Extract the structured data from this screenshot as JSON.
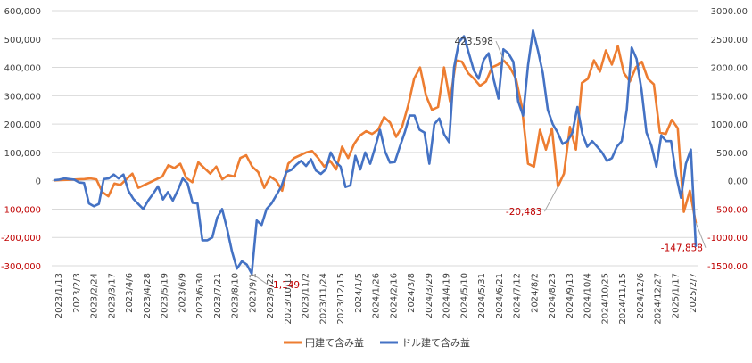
{
  "colors": {
    "yen_series": "#ed7d31",
    "usd_series": "#4472c4",
    "grid": "#d9d9d9",
    "negative_label": "#c00000",
    "text": "#404040"
  },
  "chart_data": {
    "type": "line",
    "grid": true,
    "legend_position": "bottom",
    "y_left": {
      "min": -300000,
      "max": 600000,
      "ticks": [
        -300000,
        -200000,
        -100000,
        0,
        100000,
        200000,
        300000,
        400000,
        500000,
        600000
      ],
      "tick_labels": [
        "-300,000",
        "-200,000",
        "-100,000",
        "0",
        "100,000",
        "200,000",
        "300,000",
        "400,000",
        "500,000",
        "600,000"
      ]
    },
    "y_right": {
      "min": -1500,
      "max": 3000,
      "ticks": [
        -1500,
        -1000,
        -500,
        0,
        500,
        1000,
        1500,
        2000,
        2500,
        3000
      ],
      "tick_labels": [
        "-1500.00",
        "-1000.00",
        "-500.00",
        "0.00",
        "500.00",
        "1000.00",
        "1500.00",
        "2000.00",
        "2500.00",
        "3000.00"
      ]
    },
    "x_tick_labels": [
      "2023/1/13",
      "2023/2/3",
      "2023/2/24",
      "2023/3/17",
      "2023/4/6",
      "2023/4/28",
      "2023/5/19",
      "2023/6/9",
      "2023/6/30",
      "2023/7/21",
      "2023/8/10",
      "2023/9/1",
      "2023/9/22",
      "2023/10/13",
      "2023/11/2",
      "2023/11/24",
      "2023/12/15",
      "2024/1/5",
      "2024/1/26",
      "2024/2/16",
      "2024/3/8",
      "2024/3/29",
      "2024/4/19",
      "2024/5/10",
      "2024/5/31",
      "2024/6/21",
      "2024/7/12",
      "2024/8/2",
      "2024/8/23",
      "2024/9/13",
      "2024/10/4",
      "2024/10/25",
      "2024/11/15",
      "2024/12/6",
      "2024/12/27",
      "2025/1/17",
      "2025/2/7"
    ],
    "series": [
      {
        "name": "円建て含み益",
        "axis": "left",
        "values": [
          1000,
          2000,
          3000,
          4000,
          5000,
          6000,
          8000,
          5000,
          -40000,
          -55000,
          -10000,
          -15000,
          5000,
          25000,
          -25000,
          -15000,
          -5000,
          5000,
          15000,
          55000,
          45000,
          60000,
          10000,
          -5000,
          65000,
          45000,
          25000,
          50000,
          5000,
          20000,
          15000,
          80000,
          90000,
          50000,
          30000,
          -25000,
          15000,
          0,
          -35000,
          60000,
          80000,
          90000,
          100000,
          105000,
          80000,
          50000,
          70000,
          40000,
          120000,
          80000,
          130000,
          160000,
          175000,
          165000,
          180000,
          225000,
          205000,
          155000,
          190000,
          265000,
          360000,
          400000,
          300000,
          250000,
          260000,
          400000,
          280000,
          425000,
          420000,
          380000,
          360000,
          335000,
          350000,
          400000,
          410000,
          423598,
          400000,
          360000,
          260000,
          60000,
          50000,
          180000,
          110000,
          185000,
          -20483,
          25000,
          190000,
          110000,
          345000,
          360000,
          425000,
          385000,
          460000,
          410000,
          475000,
          380000,
          350000,
          400000,
          420000,
          360000,
          340000,
          170000,
          165000,
          215000,
          185000,
          -110000,
          -35000,
          -147858
        ]
      },
      {
        "name": "ドル建て含み益",
        "axis": "right",
        "values": [
          10,
          20,
          40,
          30,
          20,
          -30,
          -40,
          -400,
          -450,
          -410,
          30,
          40,
          110,
          40,
          110,
          -180,
          -320,
          -410,
          -500,
          -350,
          -230,
          -100,
          -330,
          -200,
          -350,
          -170,
          40,
          -50,
          -390,
          -400,
          -1050,
          -1050,
          -1000,
          -650,
          -500,
          -850,
          -1250,
          -1550,
          -1420,
          -1480,
          -1640,
          -700,
          -780,
          -500,
          -400,
          -250,
          -100,
          150,
          190,
          280,
          350,
          260,
          380,
          180,
          120,
          200,
          500,
          330,
          250,
          -110,
          -80,
          440,
          200,
          500,
          300,
          590,
          900,
          520,
          320,
          330,
          600,
          850,
          1150,
          1150,
          900,
          850,
          300,
          1000,
          1100,
          820,
          680,
          2000,
          2450,
          2550,
          2250,
          1950,
          1800,
          2130,
          2250,
          1800,
          1450,
          2320,
          2250,
          2100,
          1400,
          1150,
          2050,
          2650,
          2300,
          1900,
          1250,
          1000,
          850,
          650,
          700,
          850,
          1300,
          830,
          600,
          700,
          600,
          500,
          350,
          400,
          600,
          700,
          1250,
          2350,
          2150,
          1600,
          850,
          620,
          250,
          800,
          700,
          700,
          100,
          -300,
          300,
          550,
          -1149
        ]
      }
    ],
    "annotations": [
      {
        "text": "423,598",
        "series": "円建て含み益",
        "color": "text"
      },
      {
        "text": "-20,483",
        "series": "円建て含み益",
        "color": "negative_label"
      },
      {
        "text": "-147,858",
        "series": "円建て含み益",
        "color": "negative_label"
      },
      {
        "text": "-1,149",
        "series": "ドル建て含み益",
        "color": "negative_label"
      }
    ],
    "legend": [
      "円建て含み益",
      "ドル建て含み益"
    ]
  }
}
